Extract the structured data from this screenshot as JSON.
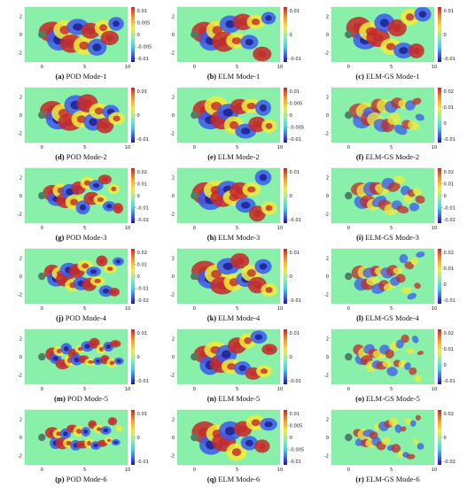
{
  "figure": {
    "x_ticks": [
      "0",
      "5",
      "10"
    ],
    "y_ticks": [
      "2",
      "0",
      "-2"
    ],
    "panels": [
      {
        "letter": "(a)",
        "label": "POD Mode-1",
        "cbar": [
          "0.01",
          "0.005",
          "0",
          "-0.005",
          "-0.01"
        ],
        "style": "pod",
        "k": 1
      },
      {
        "letter": "(b)",
        "label": "ELM Mode-1",
        "cbar": [
          "0.01",
          "0",
          "-0.01"
        ],
        "style": "elm",
        "k": 1
      },
      {
        "letter": "(c)",
        "label": "ELM-GS Mode-1",
        "cbar": [
          "0.01",
          "0",
          "-0.01"
        ],
        "style": "elm",
        "k": 1
      },
      {
        "letter": "(d)",
        "label": "POD Mode-2",
        "cbar": [
          "0.01",
          "0",
          "-0.01"
        ],
        "style": "pod",
        "k": 1.2
      },
      {
        "letter": "(e)",
        "label": "ELM Mode-2",
        "cbar": [
          "0.01",
          "0.005",
          "0",
          "-0.005",
          "-0.01"
        ],
        "style": "elm",
        "k": 1.2
      },
      {
        "letter": "(f)",
        "label": "ELM-GS Mode-2",
        "cbar": [
          "0.02",
          "0.01",
          "0",
          "-0.01"
        ],
        "style": "gs",
        "k": 1.3
      },
      {
        "letter": "(g)",
        "label": "POD Mode-3",
        "cbar": [
          "0.02",
          "0.01",
          "0",
          "-0.01",
          "-0.02"
        ],
        "style": "pod",
        "k": 2
      },
      {
        "letter": "(h)",
        "label": "ELM Mode-3",
        "cbar": [
          "0.01",
          "0",
          "-0.01"
        ],
        "style": "elm",
        "k": 1.4
      },
      {
        "letter": "(i)",
        "label": "ELM-GS Mode-3",
        "cbar": [
          "0.02",
          "0.01",
          "0",
          "-0.01",
          "-0.02"
        ],
        "style": "gs",
        "k": 1.6
      },
      {
        "letter": "(j)",
        "label": "POD Mode-4",
        "cbar": [
          "0.02",
          "0.01",
          "0",
          "-0.01",
          "-0.02"
        ],
        "style": "pod",
        "k": 2.1
      },
      {
        "letter": "(k)",
        "label": "ELM Mode-4",
        "cbar": [
          "0.01",
          "0",
          "-0.01"
        ],
        "style": "elm",
        "k": 1.3
      },
      {
        "letter": "(l)",
        "label": "ELM-GS Mode-4",
        "cbar": [
          "0.02",
          "0.01",
          "0",
          "-0.01"
        ],
        "style": "gs",
        "k": 1.9
      },
      {
        "letter": "(m)",
        "label": "POD Mode-5",
        "cbar": [
          "0.01",
          "0",
          "-0.01"
        ],
        "style": "pod",
        "k": 2.8
      },
      {
        "letter": "(n)",
        "label": "ELM Mode-5",
        "cbar": [
          "0.01",
          "0",
          "-0.01"
        ],
        "style": "elm",
        "k": 1.6
      },
      {
        "letter": "(o)",
        "label": "ELM-GS Mode-5",
        "cbar": [
          "0.02",
          "0.01",
          "0",
          "-0.01"
        ],
        "style": "gs",
        "k": 2.1
      },
      {
        "letter": "(p)",
        "label": "POD Mode-6",
        "cbar": [
          "0.01",
          "0",
          "-0.01"
        ],
        "style": "pod",
        "k": 3
      },
      {
        "letter": "(q)",
        "label": "ELM Mode-6",
        "cbar": [
          "0.01",
          "0.005",
          "0",
          "-0.005",
          "-0.01"
        ],
        "style": "elm",
        "k": 1.1
      },
      {
        "letter": "(r)",
        "label": "ELM-GS Mode-6",
        "cbar": [
          "0.02",
          "0",
          "-0.02"
        ],
        "style": "gs",
        "k": 2.4
      }
    ],
    "colors": {
      "background": "#88f0a8",
      "red": "#c62828",
      "orange": "#ff9a1f",
      "yellow": "#f2ec3a",
      "cyan": "#3fd5ea",
      "blue": "#3a5af0",
      "navy": "#1a1a8c",
      "cylinder": "#4f7f66"
    }
  }
}
